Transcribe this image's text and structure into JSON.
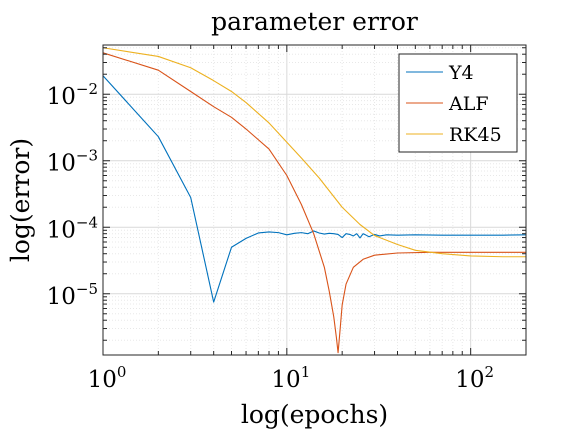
{
  "chart_data": {
    "type": "line",
    "title": "parameter error",
    "xlabel": "log(epochs)",
    "ylabel": "log(error)",
    "xscale": "log",
    "yscale": "log",
    "xlim": [
      1,
      200
    ],
    "ylim": [
      1.2e-06,
      0.055
    ],
    "x_ticks": [
      {
        "value": 1,
        "base": "10",
        "exp": "0"
      },
      {
        "value": 10,
        "base": "10",
        "exp": "1"
      },
      {
        "value": 100,
        "base": "10",
        "exp": "2"
      }
    ],
    "y_ticks": [
      {
        "value": 0.01,
        "base": "10",
        "exp": "−2"
      },
      {
        "value": 0.001,
        "base": "10",
        "exp": "−3"
      },
      {
        "value": 0.0001,
        "base": "10",
        "exp": "−4"
      },
      {
        "value": 1e-05,
        "base": "10",
        "exp": "−5"
      }
    ],
    "grid": true,
    "minor_grid": true,
    "box": true,
    "legend_position": "top-right",
    "series": [
      {
        "name": "Y4",
        "color": "#0072BD",
        "points": [
          [
            1,
            0.019
          ],
          [
            2,
            0.0023
          ],
          [
            3,
            0.00028
          ],
          [
            4,
            7.5e-06
          ],
          [
            5,
            5e-05
          ],
          [
            6,
            6.8e-05
          ],
          [
            7,
            8.2e-05
          ],
          [
            8,
            8.5e-05
          ],
          [
            9,
            8.3e-05
          ],
          [
            10,
            7.7e-05
          ],
          [
            11,
            8.1e-05
          ],
          [
            12,
            8.3e-05
          ],
          [
            13,
            8e-05
          ],
          [
            14,
            8.8e-05
          ],
          [
            15,
            8.2e-05
          ],
          [
            16,
            7.9e-05
          ],
          [
            17,
            8.1e-05
          ],
          [
            18,
            8e-05
          ],
          [
            19,
            7.8e-05
          ],
          [
            20,
            7e-05
          ],
          [
            21,
            8e-05
          ],
          [
            22,
            7.8e-05
          ],
          [
            23,
            7.4e-05
          ],
          [
            24,
            8e-05
          ],
          [
            25,
            6.9e-05
          ],
          [
            26,
            8e-05
          ],
          [
            27,
            7.6e-05
          ],
          [
            28,
            7.2e-05
          ],
          [
            30,
            7.8e-05
          ],
          [
            32,
            7.4e-05
          ],
          [
            35,
            7.7e-05
          ],
          [
            40,
            7.6e-05
          ],
          [
            50,
            7.7e-05
          ],
          [
            70,
            7.6e-05
          ],
          [
            100,
            7.6e-05
          ],
          [
            150,
            7.6e-05
          ],
          [
            200,
            7.7e-05
          ]
        ]
      },
      {
        "name": "ALF",
        "color": "#D95319",
        "points": [
          [
            1,
            0.042
          ],
          [
            2,
            0.023
          ],
          [
            3,
            0.011
          ],
          [
            4,
            0.0065
          ],
          [
            5,
            0.0045
          ],
          [
            6,
            0.003
          ],
          [
            8,
            0.0015
          ],
          [
            10,
            0.0006
          ],
          [
            12,
            0.00022
          ],
          [
            14,
            8e-05
          ],
          [
            16,
            2.5e-05
          ],
          [
            17,
            1.1e-05
          ],
          [
            18,
            4.5e-06
          ],
          [
            18.6,
            2.2e-06
          ],
          [
            19,
            1.3e-06
          ],
          [
            19.4,
            2.5e-06
          ],
          [
            20,
            6.8e-06
          ],
          [
            21,
            1.4e-05
          ],
          [
            23,
            2.5e-05
          ],
          [
            26,
            3.3e-05
          ],
          [
            30,
            3.8e-05
          ],
          [
            40,
            4.1e-05
          ],
          [
            60,
            4.2e-05
          ],
          [
            100,
            4.2e-05
          ],
          [
            200,
            4.2e-05
          ]
        ]
      },
      {
        "name": "RK45",
        "color": "#EDB120",
        "points": [
          [
            1,
            0.05
          ],
          [
            2,
            0.037
          ],
          [
            3,
            0.025
          ],
          [
            4,
            0.016
          ],
          [
            5,
            0.011
          ],
          [
            6,
            0.0075
          ],
          [
            8,
            0.0037
          ],
          [
            10,
            0.0019
          ],
          [
            12,
            0.0011
          ],
          [
            15,
            0.00055
          ],
          [
            20,
            0.0002
          ],
          [
            25,
            0.00011
          ],
          [
            30,
            7.5e-05
          ],
          [
            40,
            5.5e-05
          ],
          [
            50,
            4.5e-05
          ],
          [
            70,
            4e-05
          ],
          [
            100,
            3.7e-05
          ],
          [
            150,
            3.6e-05
          ],
          [
            200,
            3.6e-05
          ]
        ]
      }
    ]
  }
}
